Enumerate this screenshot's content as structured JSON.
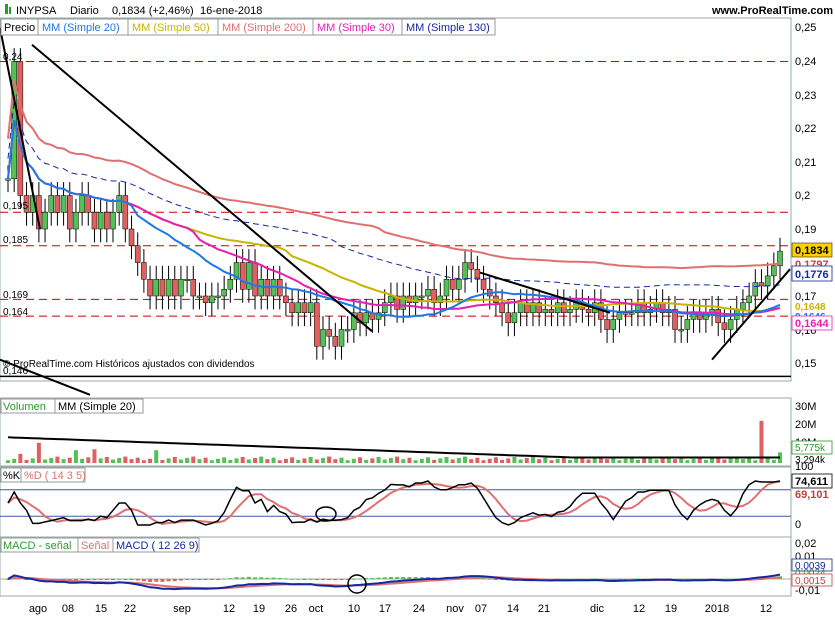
{
  "header": {
    "symbol": "INYPSA",
    "period": "Diario",
    "quote": "0,1834 (+2,46%)",
    "date": "16-ene-2018",
    "site": "www.ProRealTime.com"
  },
  "price_legend": {
    "label": "Precio",
    "items": [
      {
        "text": "MM (Simple 20)",
        "color": "#1e78e6"
      },
      {
        "text": "MM (Simple 50)",
        "color": "#c8b400"
      },
      {
        "text": "MM (Simple 200)",
        "color": "#e07070"
      },
      {
        "text": "MM (Simple 30)",
        "color": "#e61eb4"
      },
      {
        "text": "MM (Simple 130)",
        "color": "#1428a0"
      }
    ]
  },
  "footnote": "© ProRealTime.com  Históricos ajustados con dividendos",
  "left_levels": [
    "0,24",
    "0,195",
    "0,185",
    "0,169",
    "0,164",
    "0,146"
  ],
  "volume_legend": {
    "label": "Volumen",
    "ma": "MM (Simple 20)"
  },
  "stoch_legend": {
    "k": "%K",
    "d": "%D ( 14 3 5)"
  },
  "macd_legend": {
    "diff": "MACD - señal",
    "signal": "Señal",
    "macd": "MACD ( 12 26 9)"
  },
  "x_labels": [
    "ago",
    "08",
    "15",
    "22",
    "sep",
    "12",
    "19",
    "26",
    "oct",
    "10",
    "17",
    "24",
    "nov",
    "07",
    "14",
    "21",
    "dic",
    "12",
    "19",
    "2018",
    "12"
  ],
  "price_axis": [
    "0,25",
    "0,24",
    "0,23",
    "0,22",
    "0,21",
    "0,2",
    "0,19",
    "0,17",
    "0,16",
    "0,15"
  ],
  "price_tags": [
    {
      "text": "0,1834",
      "bg": "#ffd000",
      "fg": "#000000"
    },
    {
      "text": "0,1797",
      "bg": "#ffffff",
      "fg": "#d04040"
    },
    {
      "text": "0,1776",
      "bg": "#ffffff",
      "fg": "#1428a0"
    },
    {
      "text": "0,1644",
      "bg": "#ffffff",
      "fg": "#e61eb4"
    },
    {
      "text": "0,1646",
      "bg": "#ffffff",
      "fg": "#1e78e6"
    },
    {
      "text": "0,1648",
      "bg": "#ffffff",
      "fg": "#c8b400"
    }
  ],
  "volume_axis": [
    "30M",
    "20M",
    "10M"
  ],
  "volume_tags": [
    {
      "text": "5,775k",
      "fg": "#2a9a2a"
    },
    {
      "text": "3,294k",
      "fg": "#000000"
    }
  ],
  "stoch_axis": [
    "100",
    "0"
  ],
  "stoch_tags": [
    {
      "text": "74,611",
      "fg": "#000000"
    },
    {
      "text": "69,101",
      "fg": "#c04040"
    }
  ],
  "macd_axis": [
    "0,02",
    "0,01",
    "0",
    "-0,01"
  ],
  "macd_tags": [
    {
      "text": "0,0039",
      "fg": "#1428a0"
    },
    {
      "text": "0,0024",
      "fg": "#2a9a2a"
    },
    {
      "text": "0,0015",
      "fg": "#c04040"
    }
  ],
  "chart_data": [
    {
      "type": "candlestick",
      "title": "INYPSA Diario",
      "ylim": [
        0.14,
        0.25
      ],
      "last": 0.1834,
      "indicators": {
        "sma20": 0.1646,
        "sma50": 0.1648,
        "sma200": 0.1797,
        "sma30": 0.1644,
        "sma130": 0.1776
      },
      "horizontal_levels": [
        0.24,
        0.195,
        0.185,
        0.169,
        0.164,
        0.146
      ],
      "closes": [
        0.205,
        0.24,
        0.2,
        0.195,
        0.2,
        0.19,
        0.195,
        0.2,
        0.195,
        0.2,
        0.19,
        0.195,
        0.2,
        0.195,
        0.19,
        0.195,
        0.19,
        0.195,
        0.2,
        0.19,
        0.185,
        0.18,
        0.175,
        0.17,
        0.175,
        0.17,
        0.175,
        0.17,
        0.175,
        0.175,
        0.17,
        0.17,
        0.168,
        0.17,
        0.17,
        0.172,
        0.175,
        0.18,
        0.172,
        0.18,
        0.17,
        0.175,
        0.17,
        0.175,
        0.17,
        0.168,
        0.165,
        0.168,
        0.165,
        0.168,
        0.155,
        0.16,
        0.158,
        0.155,
        0.16,
        0.16,
        0.165,
        0.162,
        0.165,
        0.163,
        0.165,
        0.168,
        0.17,
        0.166,
        0.17,
        0.168,
        0.17,
        0.17,
        0.172,
        0.168,
        0.17,
        0.175,
        0.172,
        0.175,
        0.18,
        0.178,
        0.175,
        0.172,
        0.17,
        0.168,
        0.165,
        0.162,
        0.165,
        0.168,
        0.165,
        0.168,
        0.165,
        0.166,
        0.165,
        0.168,
        0.165,
        0.166,
        0.168,
        0.166,
        0.165,
        0.168,
        0.163,
        0.16,
        0.163,
        0.165,
        0.165,
        0.165,
        0.168,
        0.165,
        0.166,
        0.168,
        0.165,
        0.166,
        0.16,
        0.16,
        0.163,
        0.165,
        0.163,
        0.165,
        0.166,
        0.162,
        0.16,
        0.163,
        0.166,
        0.168,
        0.17,
        0.174,
        0.173,
        0.176,
        0.179,
        0.1834
      ]
    },
    {
      "type": "bar",
      "title": "Volumen",
      "ylim": [
        0,
        30000000
      ],
      "last": 5775000,
      "ma20_last": 3294000
    },
    {
      "type": "line",
      "title": "Stochastic %K %D (14 3 5)",
      "ylim": [
        0,
        100
      ],
      "k_last": 74.611,
      "d_last": 69.101
    },
    {
      "type": "line",
      "title": "MACD (12 26 9)",
      "ylim": [
        -0.01,
        0.02
      ],
      "macd_last": 0.0039,
      "diff_last": 0.0024,
      "signal_last": 0.0015
    }
  ]
}
